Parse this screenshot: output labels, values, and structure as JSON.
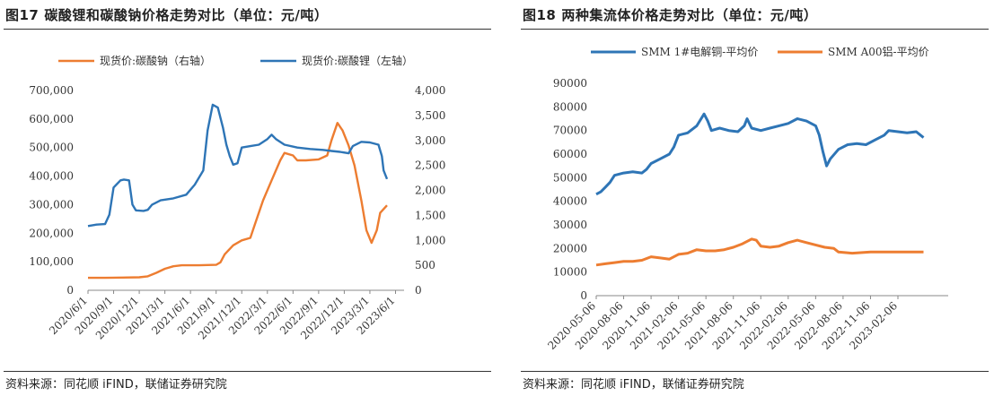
{
  "left_panel": {
    "figure_no": "图17",
    "title": "碳酸锂和碳酸钠价格走势对比（单位：元/吨）",
    "source": "资料来源：同花顺 iFIND，联储证券研究院"
  },
  "right_panel": {
    "figure_no": "图18",
    "title": "两种集流体价格走势对比（单位：元/吨）",
    "source": "资料来源：同花顺 iFIND，联储证券研究院"
  },
  "colors": {
    "orange": "#ED7D31",
    "blue": "#2E75B6"
  },
  "chart_data": [
    {
      "type": "line",
      "legend_position": "top",
      "x": {
        "tick_labels": [
          "2020/6/1",
          "2020/9/1",
          "2020/12/1",
          "2021/3/1",
          "2021/6/1",
          "2021/9/1",
          "2021/12/1",
          "2022/3/1",
          "2022/6/1",
          "2022/9/1",
          "2022/12/1",
          "2023/3/1",
          "2023/6/1"
        ],
        "range": [
          0,
          37
        ]
      },
      "y_left": {
        "ticks": [
          "0",
          "100,000",
          "200,000",
          "300,000",
          "400,000",
          "500,000",
          "600,000",
          "700,000"
        ],
        "range": [
          0,
          700000
        ]
      },
      "y_right": {
        "ticks": [
          "0",
          "500",
          "1,000",
          "1,500",
          "2,000",
          "2,500",
          "3,000",
          "3,500",
          "4,000"
        ],
        "range": [
          0,
          4000
        ]
      },
      "series": [
        {
          "name": "现货价:碳酸钠（右轴）",
          "axis": "right",
          "color": "#ED7D31",
          "points": [
            [
              0,
              250
            ],
            [
              2,
              250
            ],
            [
              4,
              255
            ],
            [
              6,
              260
            ],
            [
              7,
              280
            ],
            [
              8,
              350
            ],
            [
              9,
              430
            ],
            [
              10,
              480
            ],
            [
              11,
              500
            ],
            [
              13,
              500
            ],
            [
              15,
              510
            ],
            [
              15.5,
              560
            ],
            [
              16,
              720
            ],
            [
              17,
              900
            ],
            [
              18,
              1000
            ],
            [
              19,
              1050
            ],
            [
              19.5,
              1300
            ],
            [
              20.5,
              1800
            ],
            [
              21.5,
              2200
            ],
            [
              22.5,
              2600
            ],
            [
              23,
              2750
            ],
            [
              24,
              2700
            ],
            [
              24.5,
              2600
            ],
            [
              25.5,
              2600
            ],
            [
              27,
              2620
            ],
            [
              28,
              2700
            ],
            [
              28.5,
              3000
            ],
            [
              29.2,
              3350
            ],
            [
              29.8,
              3200
            ],
            [
              30.5,
              2900
            ],
            [
              31.2,
              2500
            ],
            [
              32,
              1800
            ],
            [
              32.6,
              1200
            ],
            [
              33.2,
              950
            ],
            [
              33.8,
              1200
            ],
            [
              34.2,
              1550
            ],
            [
              35,
              1700
            ]
          ]
        },
        {
          "name": "现货价:碳酸锂（左轴）",
          "axis": "left",
          "color": "#2E75B6",
          "points": [
            [
              0,
              225000
            ],
            [
              1,
              230000
            ],
            [
              2,
              232000
            ],
            [
              2.5,
              265000
            ],
            [
              3,
              360000
            ],
            [
              3.8,
              385000
            ],
            [
              4.2,
              388000
            ],
            [
              4.8,
              385000
            ],
            [
              5.2,
              300000
            ],
            [
              5.6,
              280000
            ],
            [
              6.5,
              278000
            ],
            [
              7,
              282000
            ],
            [
              7.5,
              300000
            ],
            [
              8.5,
              315000
            ],
            [
              10,
              322000
            ],
            [
              11.5,
              335000
            ],
            [
              12.5,
              370000
            ],
            [
              13.5,
              420000
            ],
            [
              14,
              560000
            ],
            [
              14.6,
              650000
            ],
            [
              15.2,
              640000
            ],
            [
              15.8,
              570000
            ],
            [
              16.2,
              510000
            ],
            [
              16.6,
              470000
            ],
            [
              17,
              440000
            ],
            [
              17.5,
              445000
            ],
            [
              18,
              500000
            ],
            [
              19,
              505000
            ],
            [
              20,
              510000
            ],
            [
              21,
              530000
            ],
            [
              21.5,
              545000
            ],
            [
              22,
              530000
            ],
            [
              23,
              510000
            ],
            [
              24.5,
              500000
            ],
            [
              26,
              495000
            ],
            [
              27.5,
              492000
            ],
            [
              28.5,
              488000
            ],
            [
              29.5,
              485000
            ],
            [
              30.5,
              480000
            ],
            [
              31,
              505000
            ],
            [
              32,
              520000
            ],
            [
              33,
              518000
            ],
            [
              34,
              510000
            ],
            [
              34.4,
              470000
            ],
            [
              34.6,
              420000
            ],
            [
              35,
              390000
            ]
          ]
        }
      ]
    },
    {
      "type": "line",
      "legend_position": "top",
      "x": {
        "tick_labels": [
          "2020-05-06",
          "2020-08-06",
          "2020-11-06",
          "2021-02-06",
          "2021-05-06",
          "2021-08-06",
          "2021-11-06",
          "2022-02-06",
          "2022-05-06",
          "2022-08-06",
          "2022-11-06",
          "2023-02-06"
        ],
        "range": [
          0,
          38.5
        ]
      },
      "y": {
        "ticks": [
          "0",
          "10000",
          "20000",
          "30000",
          "40000",
          "50000",
          "60000",
          "70000",
          "80000",
          "90000"
        ],
        "range": [
          0,
          90000
        ]
      },
      "series": [
        {
          "name": "SMM 1#电解铜-平均价",
          "color": "#2E75B6",
          "points": [
            [
              0,
              43000
            ],
            [
              0.5,
              44000
            ],
            [
              1,
              46000
            ],
            [
              1.5,
              48000
            ],
            [
              2,
              51000
            ],
            [
              3,
              52000
            ],
            [
              4,
              52500
            ],
            [
              5,
              52000
            ],
            [
              5.5,
              53500
            ],
            [
              6,
              56000
            ],
            [
              7,
              58000
            ],
            [
              8,
              60000
            ],
            [
              8.5,
              63000
            ],
            [
              9,
              68000
            ],
            [
              10,
              69000
            ],
            [
              11,
              72000
            ],
            [
              11.8,
              77000
            ],
            [
              12.2,
              74000
            ],
            [
              12.6,
              70000
            ],
            [
              13.5,
              71000
            ],
            [
              14.5,
              70000
            ],
            [
              15.5,
              69500
            ],
            [
              16.2,
              72000
            ],
            [
              16.5,
              75000
            ],
            [
              17,
              71000
            ],
            [
              18,
              70000
            ],
            [
              19,
              71000
            ],
            [
              20,
              72000
            ],
            [
              21,
              73000
            ],
            [
              22,
              75000
            ],
            [
              23,
              74000
            ],
            [
              24,
              72000
            ],
            [
              24.4,
              68000
            ],
            [
              24.8,
              61000
            ],
            [
              25.2,
              55000
            ],
            [
              25.6,
              58000
            ],
            [
              26.5,
              62000
            ],
            [
              27.5,
              64000
            ],
            [
              28.5,
              64500
            ],
            [
              29.5,
              64000
            ],
            [
              30.5,
              66000
            ],
            [
              31.5,
              68000
            ],
            [
              32,
              70000
            ],
            [
              33,
              69500
            ],
            [
              34,
              69000
            ],
            [
              35,
              69500
            ],
            [
              35.8,
              67000
            ]
          ]
        },
        {
          "name": "SMM A00铝-平均价",
          "color": "#ED7D31",
          "points": [
            [
              0,
              13000
            ],
            [
              1,
              13500
            ],
            [
              2,
              14000
            ],
            [
              3,
              14500
            ],
            [
              4,
              14500
            ],
            [
              5,
              15000
            ],
            [
              6,
              16500
            ],
            [
              7,
              16000
            ],
            [
              8,
              15500
            ],
            [
              9,
              17500
            ],
            [
              10,
              18000
            ],
            [
              11,
              19500
            ],
            [
              12,
              19000
            ],
            [
              13,
              19000
            ],
            [
              14,
              19500
            ],
            [
              15,
              20500
            ],
            [
              16,
              22000
            ],
            [
              17,
              24000
            ],
            [
              17.5,
              23500
            ],
            [
              18,
              21000
            ],
            [
              19,
              20500
            ],
            [
              20,
              21000
            ],
            [
              21,
              22500
            ],
            [
              22,
              23500
            ],
            [
              23,
              22500
            ],
            [
              24,
              21500
            ],
            [
              25,
              20500
            ],
            [
              26,
              20000
            ],
            [
              26.5,
              18500
            ],
            [
              28,
              18000
            ],
            [
              30,
              18500
            ],
            [
              32,
              18500
            ],
            [
              34,
              18500
            ],
            [
              35.8,
              18500
            ]
          ]
        }
      ]
    }
  ]
}
